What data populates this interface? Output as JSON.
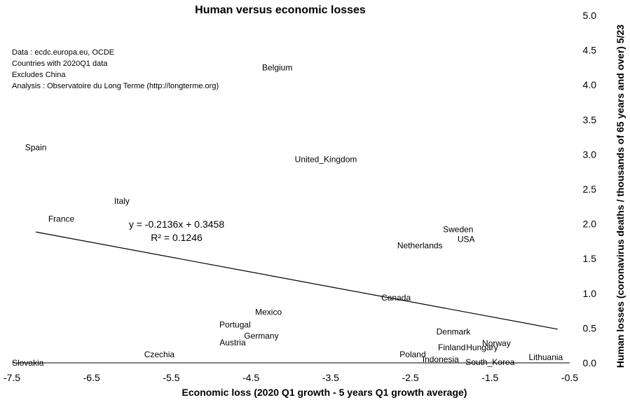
{
  "chart_data": {
    "type": "scatter",
    "title": "Human versus economic losses",
    "xlabel": "Economic loss (2020 Q1 growth - 5 years Q1 growth average)",
    "ylabel": "Human losses (coronavirus deaths  / thousands of 65 years and over) 5/23",
    "xlim": [
      -7.5,
      -0.5
    ],
    "ylim": [
      0.0,
      5.0
    ],
    "x_ticks": [
      "-7.5",
      "-6.5",
      "-5.5",
      "-4.5",
      "-3.5",
      "-2.5",
      "-1.5",
      "-0.5"
    ],
    "y_ticks": [
      "0.0",
      "0.5",
      "1.0",
      "1.5",
      "2.0",
      "2.5",
      "3.0",
      "3.5",
      "4.0",
      "4.5",
      "5.0"
    ],
    "y_axis_side": "right",
    "notes": [
      "Data : ecdc.europa.eu, OCDE",
      "Countries with 2020Q1 data",
      "Excludes China",
      "Analysis : Observatoire du Long Terme (http://longterme.org)"
    ],
    "points": [
      {
        "label": "Belgium",
        "x": -4.17,
        "y": 4.25
      },
      {
        "label": "Spain",
        "x": -7.2,
        "y": 3.1
      },
      {
        "label": "United_Kingdom",
        "x": -3.56,
        "y": 2.93
      },
      {
        "label": "Italy",
        "x": -6.12,
        "y": 2.33
      },
      {
        "label": "France",
        "x": -6.88,
        "y": 2.07
      },
      {
        "label": "Sweden",
        "x": -1.9,
        "y": 1.92
      },
      {
        "label": "USA",
        "x": -1.8,
        "y": 1.78
      },
      {
        "label": "Netherlands",
        "x": -2.38,
        "y": 1.69
      },
      {
        "label": "Canada",
        "x": -2.68,
        "y": 0.94
      },
      {
        "label": "Mexico",
        "x": -4.28,
        "y": 0.73
      },
      {
        "label": "Portugal",
        "x": -4.7,
        "y": 0.55
      },
      {
        "label": "Germany",
        "x": -4.37,
        "y": 0.39
      },
      {
        "label": "Austria",
        "x": -4.73,
        "y": 0.29
      },
      {
        "label": "Denmark",
        "x": -1.96,
        "y": 0.45
      },
      {
        "label": "Norway",
        "x": -1.42,
        "y": 0.28
      },
      {
        "label": "Finland",
        "x": -1.98,
        "y": 0.22
      },
      {
        "label": "Hungary",
        "x": -1.6,
        "y": 0.22
      },
      {
        "label": "Czechia",
        "x": -5.65,
        "y": 0.12
      },
      {
        "label": "Poland",
        "x": -2.47,
        "y": 0.12
      },
      {
        "label": "Lithuania",
        "x": -0.8,
        "y": 0.08
      },
      {
        "label": "Indonesia",
        "x": -2.12,
        "y": 0.05
      },
      {
        "label": "South_Korea",
        "x": -1.5,
        "y": 0.01
      },
      {
        "label": "Slovakia",
        "x": -7.3,
        "y": 0.0
      }
    ],
    "trendline": {
      "equation": "y = -0.2136x + 0.3458",
      "r_squared": "R² = 0.1246",
      "slope": -0.2136,
      "intercept": 0.3458,
      "x_start": -7.2,
      "x_end": -0.65
    }
  }
}
